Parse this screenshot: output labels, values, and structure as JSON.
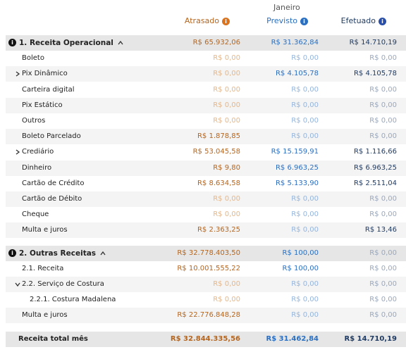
{
  "header": {
    "month": "Janeiro",
    "columns": [
      "Atrasado",
      "Previsto",
      "Efetuado"
    ]
  },
  "sections": [
    {
      "title": "1. Receita Operacional",
      "values": [
        "R$ 65.932,06",
        "R$ 31.362,84",
        "R$ 14.710,19"
      ],
      "rows": [
        {
          "label": "Boleto",
          "values": [
            "R$ 0,00",
            "R$ 0,00",
            "R$ 0,00"
          ]
        },
        {
          "label": "Pix Dinâmico",
          "collapsed": true,
          "values": [
            "R$ 0,00",
            "R$ 4.105,78",
            "R$ 4.105,78"
          ]
        },
        {
          "label": "Carteira digital",
          "values": [
            "R$ 0,00",
            "R$ 0,00",
            "R$ 0,00"
          ]
        },
        {
          "label": "Pix Estático",
          "values": [
            "R$ 0,00",
            "R$ 0,00",
            "R$ 0,00"
          ]
        },
        {
          "label": "Outros",
          "values": [
            "R$ 0,00",
            "R$ 0,00",
            "R$ 0,00"
          ]
        },
        {
          "label": "Boleto Parcelado",
          "values": [
            "R$ 1.878,85",
            "R$ 0,00",
            "R$ 0,00"
          ]
        },
        {
          "label": "Crediário",
          "collapsed": true,
          "values": [
            "R$ 53.045,58",
            "R$ 15.159,91",
            "R$ 1.116,66"
          ]
        },
        {
          "label": "Dinheiro",
          "values": [
            "R$ 9,80",
            "R$ 6.963,25",
            "R$ 6.963,25"
          ]
        },
        {
          "label": "Cartão de Crédito",
          "values": [
            "R$ 8.634,58",
            "R$ 5.133,90",
            "R$ 2.511,04"
          ]
        },
        {
          "label": "Cartão de Débito",
          "values": [
            "R$ 0,00",
            "R$ 0,00",
            "R$ 0,00"
          ]
        },
        {
          "label": "Cheque",
          "values": [
            "R$ 0,00",
            "R$ 0,00",
            "R$ 0,00"
          ]
        },
        {
          "label": "Multa e juros",
          "values": [
            "R$ 2.363,25",
            "R$ 0,00",
            "R$ 13,46"
          ]
        }
      ]
    },
    {
      "title": "2. Outras Receitas",
      "values": [
        "R$ 32.778.403,50",
        "R$ 100,00",
        "R$ 0,00"
      ],
      "rows": [
        {
          "label": "2.1. Receita",
          "values": [
            "R$ 10.001.555,22",
            "R$ 100,00",
            "R$ 0,00"
          ]
        },
        {
          "label": "2.2. Serviço de Costura",
          "values": [
            "R$ 0,00",
            "R$ 0,00",
            "R$ 0,00"
          ],
          "children": [
            {
              "label": "2.2.1. Costura Madalena",
              "values": [
                "R$ 0,00",
                "R$ 0,00",
                "R$ 0,00"
              ]
            }
          ]
        },
        {
          "label": "Multa e juros",
          "values": [
            "R$ 22.776.848,28",
            "R$ 0,00",
            "R$ 0,00"
          ]
        }
      ]
    }
  ],
  "total": {
    "label": "Receita total mês",
    "values": [
      "R$ 32.844.335,56",
      "R$ 31.462,84",
      "R$ 14.710,19"
    ]
  }
}
